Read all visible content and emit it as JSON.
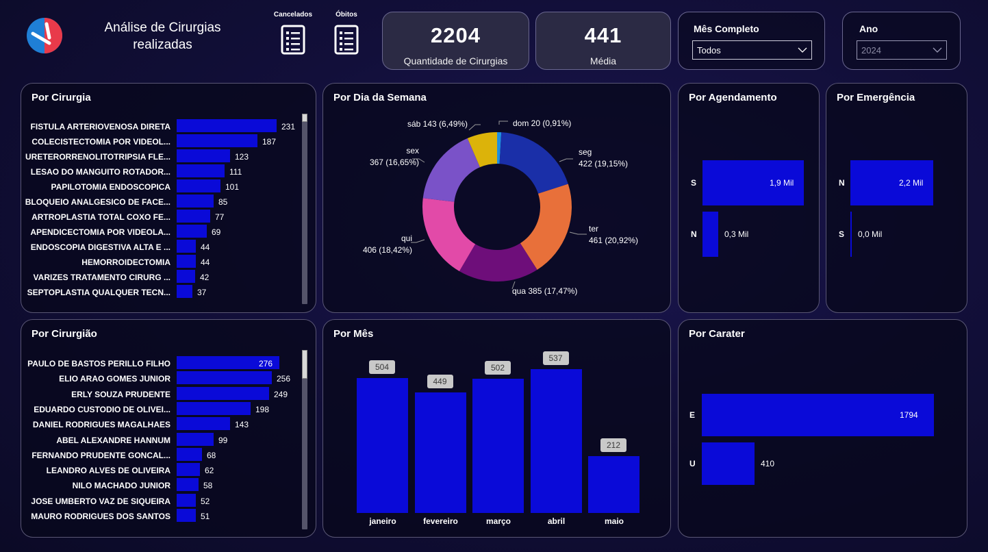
{
  "header": {
    "title_line1": "Análise de Cirurgias",
    "title_line2": "realizadas",
    "cancelados_label": "Cancelados",
    "obitos_label": "Óbitos"
  },
  "kpis": {
    "quantidade": {
      "value": "2204",
      "label": "Quantidade de Cirurgias"
    },
    "media": {
      "value": "441",
      "label": "Média"
    }
  },
  "filters": {
    "mes": {
      "title": "Mês Completo",
      "selected": "Todos"
    },
    "ano": {
      "title": "Ano",
      "selected": "2024"
    }
  },
  "colors": {
    "bar": "#0a0ad8",
    "accent_red": "#e83a4a",
    "accent_blue": "#1f7fd6"
  },
  "por_cirurgia": {
    "title": "Por Cirurgia",
    "rows": [
      {
        "label": "FISTULA ARTERIOVENOSA DIRETA",
        "value": 231
      },
      {
        "label": "COLECISTECTOMIA POR VIDEOL...",
        "value": 187
      },
      {
        "label": "URETERORRENOLITOTRIPSIA FLE...",
        "value": 123
      },
      {
        "label": "LESAO DO MANGUITO ROTADOR...",
        "value": 111
      },
      {
        "label": "PAPILOTOMIA ENDOSCOPICA",
        "value": 101
      },
      {
        "label": "BLOQUEIO ANALGESICO DE FACE...",
        "value": 85
      },
      {
        "label": "ARTROPLASTIA TOTAL COXO FE...",
        "value": 77
      },
      {
        "label": "APENDICECTOMIA POR VIDEOLA...",
        "value": 69
      },
      {
        "label": "ENDOSCOPIA DIGESTIVA ALTA E ...",
        "value": 44
      },
      {
        "label": "HEMORROIDECTOMIA",
        "value": 44
      },
      {
        "label": "VARIZES TRATAMENTO CIRURG ...",
        "value": 42
      },
      {
        "label": "SEPTOPLASTIA QUALQUER TECN...",
        "value": 37
      }
    ]
  },
  "por_cirurgiao": {
    "title": "Por Cirurgião",
    "rows": [
      {
        "label": "PAULO DE BASTOS PERILLO FILHO",
        "value": 276
      },
      {
        "label": "ELIO ARAO GOMES JUNIOR",
        "value": 256
      },
      {
        "label": "ERLY SOUZA PRUDENTE",
        "value": 249
      },
      {
        "label": "EDUARDO CUSTODIO DE OLIVEI...",
        "value": 198
      },
      {
        "label": "DANIEL RODRIGUES MAGALHAES",
        "value": 143
      },
      {
        "label": "ABEL ALEXANDRE HANNUM",
        "value": 99
      },
      {
        "label": "FERNANDO PRUDENTE GONCAL...",
        "value": 68
      },
      {
        "label": "LEANDRO ALVES DE OLIVEIRA",
        "value": 62
      },
      {
        "label": "NILO MACHADO JUNIOR",
        "value": 58
      },
      {
        "label": "JOSE UMBERTO VAZ DE SIQUEIRA",
        "value": 52
      },
      {
        "label": "MAURO RODRIGUES DOS SANTOS",
        "value": 51
      }
    ]
  },
  "por_dia_semana": {
    "title": "Por Dia da Semana",
    "slices": [
      {
        "day": "dom",
        "value": 20,
        "pct": "0,91%",
        "color": "#1f8fe0",
        "text": "dom 20 (0,91%)"
      },
      {
        "day": "seg",
        "value": 422,
        "pct": "19,15%",
        "color": "#1a2fa8",
        "text1": "seg",
        "text2": "422 (19,15%)"
      },
      {
        "day": "ter",
        "value": 461,
        "pct": "20,92%",
        "color": "#e8703a",
        "text1": "ter",
        "text2": "461 (20,92%)"
      },
      {
        "day": "qua",
        "value": 385,
        "pct": "17,47%",
        "color": "#6e0e7a",
        "text": "qua 385 (17,47%)"
      },
      {
        "day": "qui",
        "value": 406,
        "pct": "18,42%",
        "color": "#e24aa8",
        "text1": "qui",
        "text2": "406 (18,42%)"
      },
      {
        "day": "sex",
        "value": 367,
        "pct": "16,65%",
        "color": "#7a52c8",
        "text1": "sex",
        "text2": "367 (16,65%)"
      },
      {
        "day": "sáb",
        "value": 143,
        "pct": "6,49%",
        "color": "#dcb30a",
        "text": "sáb 143 (6,49%)"
      }
    ]
  },
  "por_agendamento": {
    "title": "Por Agendamento",
    "rows": [
      {
        "label": "S",
        "value": 1.9,
        "display": "1,9 Mil"
      },
      {
        "label": "N",
        "value": 0.3,
        "display": "0,3 Mil"
      }
    ]
  },
  "por_emergencia": {
    "title": "Por Emergência",
    "rows": [
      {
        "label": "N",
        "value": 2.2,
        "display": "2,2 Mil"
      },
      {
        "label": "S",
        "value": 0.0,
        "display": "0,0 Mil"
      }
    ]
  },
  "por_mes": {
    "title": "Por Mês",
    "months": [
      {
        "label": "janeiro",
        "value": 504
      },
      {
        "label": "fevereiro",
        "value": 449
      },
      {
        "label": "março",
        "value": 502
      },
      {
        "label": "abril",
        "value": 537
      },
      {
        "label": "maio",
        "value": 212
      }
    ]
  },
  "por_carater": {
    "title": "Por Carater",
    "rows": [
      {
        "label": "E",
        "value": 1794
      },
      {
        "label": "U",
        "value": 410
      }
    ]
  },
  "chart_data": [
    {
      "type": "bar",
      "title": "Por Cirurgia",
      "categories": [
        "FISTULA ARTERIOVENOSA DIRETA",
        "COLECISTECTOMIA POR VIDEOL...",
        "URETERORRENOLITOTRIPSIA FLE...",
        "LESAO DO MANGUITO ROTADOR...",
        "PAPILOTOMIA ENDOSCOPICA",
        "BLOQUEIO ANALGESICO DE FACE...",
        "ARTROPLASTIA TOTAL COXO FE...",
        "APENDICECTOMIA POR VIDEOLA...",
        "ENDOSCOPIA DIGESTIVA ALTA E ...",
        "HEMORROIDECTOMIA",
        "VARIZES TRATAMENTO CIRURG ...",
        "SEPTOPLASTIA QUALQUER TECN..."
      ],
      "values": [
        231,
        187,
        123,
        111,
        101,
        85,
        77,
        69,
        44,
        44,
        42,
        37
      ]
    },
    {
      "type": "bar",
      "title": "Por Cirurgião",
      "categories": [
        "PAULO DE BASTOS PERILLO FILHO",
        "ELIO ARAO GOMES JUNIOR",
        "ERLY SOUZA PRUDENTE",
        "EDUARDO CUSTODIO DE OLIVEI...",
        "DANIEL RODRIGUES MAGALHAES",
        "ABEL ALEXANDRE HANNUM",
        "FERNANDO PRUDENTE GONCAL...",
        "LEANDRO ALVES DE OLIVEIRA",
        "NILO MACHADO JUNIOR",
        "JOSE UMBERTO VAZ DE SIQUEIRA",
        "MAURO RODRIGUES DOS SANTOS"
      ],
      "values": [
        276,
        256,
        249,
        198,
        143,
        99,
        68,
        62,
        58,
        52,
        51
      ]
    },
    {
      "type": "pie",
      "title": "Por Dia da Semana",
      "categories": [
        "dom",
        "seg",
        "ter",
        "qua",
        "qui",
        "sex",
        "sáb"
      ],
      "values": [
        20,
        422,
        461,
        385,
        406,
        367,
        143
      ]
    },
    {
      "type": "bar",
      "title": "Por Agendamento",
      "categories": [
        "S",
        "N"
      ],
      "values": [
        1900,
        300
      ]
    },
    {
      "type": "bar",
      "title": "Por Emergência",
      "categories": [
        "N",
        "S"
      ],
      "values": [
        2200,
        0
      ]
    },
    {
      "type": "bar",
      "title": "Por Mês",
      "categories": [
        "janeiro",
        "fevereiro",
        "março",
        "abril",
        "maio"
      ],
      "values": [
        504,
        449,
        502,
        537,
        212
      ]
    },
    {
      "type": "bar",
      "title": "Por Carater",
      "categories": [
        "E",
        "U"
      ],
      "values": [
        1794,
        410
      ]
    }
  ]
}
